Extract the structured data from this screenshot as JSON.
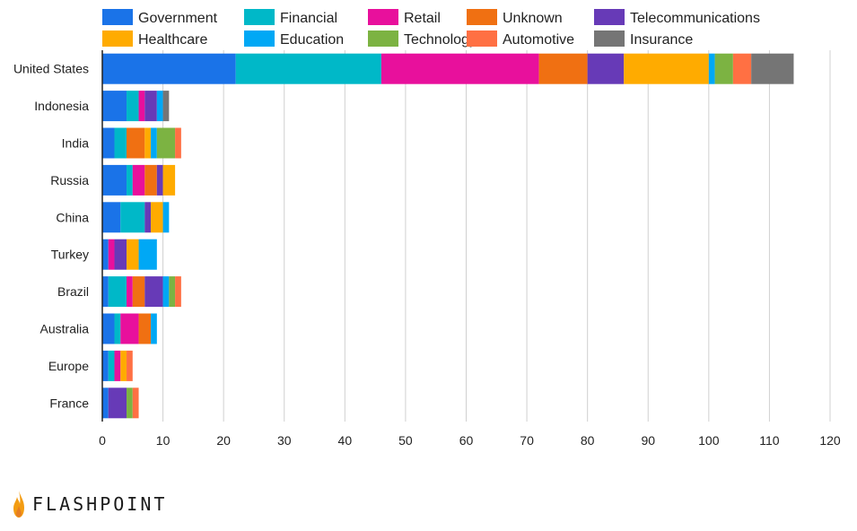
{
  "chart_data": {
    "type": "bar",
    "orientation": "horizontal",
    "stacked": true,
    "categories": [
      "United States",
      "Indonesia",
      "India",
      "Russia",
      "China",
      "Turkey",
      "Brazil",
      "Australia",
      "Europe",
      "France"
    ],
    "series": [
      {
        "name": "Government",
        "color": "#1a73e8",
        "values": [
          22,
          4,
          2,
          4,
          3,
          1,
          1,
          2,
          1,
          1
        ]
      },
      {
        "name": "Financial",
        "color": "#00b8c8",
        "values": [
          24,
          2,
          2,
          1,
          4,
          0,
          3,
          1,
          1,
          0
        ]
      },
      {
        "name": "Retail",
        "color": "#e8109c",
        "values": [
          26,
          1,
          0,
          2,
          0,
          1,
          1,
          3,
          1,
          0
        ]
      },
      {
        "name": "Unknown",
        "color": "#f07012",
        "values": [
          8,
          0,
          3,
          2,
          0,
          0,
          2,
          2,
          0,
          0
        ]
      },
      {
        "name": "Telecommunications",
        "color": "#673ab7",
        "values": [
          6,
          2,
          0,
          1,
          1,
          2,
          3,
          0,
          0,
          3
        ]
      },
      {
        "name": "Healthcare",
        "color": "#ffab00",
        "values": [
          14,
          0,
          1,
          2,
          2,
          2,
          0,
          0,
          1,
          0
        ]
      },
      {
        "name": "Education",
        "color": "#00a8f5",
        "values": [
          1,
          1,
          1,
          0,
          1,
          3,
          1,
          1,
          0,
          0
        ]
      },
      {
        "name": "Technology",
        "color": "#7cb342",
        "values": [
          3,
          0,
          3,
          0,
          0,
          0,
          1,
          0,
          0,
          1
        ]
      },
      {
        "name": "Automotive",
        "color": "#ff7043",
        "values": [
          3,
          0,
          1,
          0,
          0,
          0,
          1,
          0,
          1,
          1
        ]
      },
      {
        "name": "Insurance",
        "color": "#757575",
        "values": [
          7,
          1,
          0,
          0,
          0,
          0,
          0,
          0,
          0,
          0
        ]
      }
    ],
    "xlim": [
      0,
      120
    ],
    "xticks": [
      0,
      10,
      20,
      30,
      40,
      50,
      60,
      70,
      80,
      90,
      100,
      110,
      120
    ],
    "grid": true,
    "legend_position": "top"
  },
  "brand": {
    "name": "FLASHPOINT",
    "accent": "#f39c12"
  }
}
